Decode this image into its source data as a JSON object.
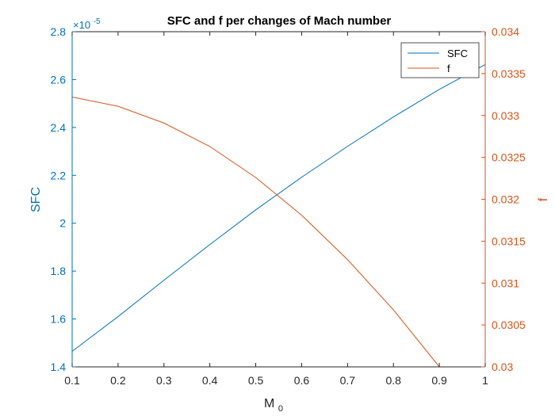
{
  "chart_data": {
    "type": "line",
    "title": "SFC and f per changes of Mach number",
    "xlabel": "M",
    "xlabel_sub": "0",
    "ylabel_left": "SFC",
    "ylabel_right": "f",
    "left_exponent_label": "×10",
    "left_exponent_power": "-5",
    "xlim": [
      0.1,
      1.0
    ],
    "ylim_left": [
      1.4,
      2.8
    ],
    "ylim_right": [
      0.03,
      0.034
    ],
    "x_ticks": [
      "0.1",
      "0.2",
      "0.3",
      "0.4",
      "0.5",
      "0.6",
      "0.7",
      "0.8",
      "0.9",
      "1"
    ],
    "y_ticks_left": [
      "1.4",
      "1.6",
      "1.8",
      "2",
      "2.2",
      "2.4",
      "2.6",
      "2.8"
    ],
    "y_ticks_right": [
      "0.03",
      "0.0305",
      "0.031",
      "0.0315",
      "0.032",
      "0.0325",
      "0.033",
      "0.0335",
      "0.034"
    ],
    "legend_position": "top-right",
    "grid": false,
    "series": [
      {
        "name": "SFC",
        "axis": "left",
        "color": "#0072BD",
        "x": [
          0.1,
          0.2,
          0.3,
          0.4,
          0.5,
          0.6,
          0.7,
          0.8,
          0.9,
          1.0
        ],
        "y": [
          1.465,
          1.61,
          1.762,
          1.911,
          2.056,
          2.192,
          2.321,
          2.444,
          2.559,
          2.663
        ]
      },
      {
        "name": "f",
        "axis": "right",
        "color": "#D95319",
        "x": [
          0.1,
          0.2,
          0.3,
          0.4,
          0.5,
          0.6,
          0.7,
          0.8,
          0.9,
          1.0
        ],
        "y": [
          0.03322,
          0.03311,
          0.03291,
          0.03263,
          0.03226,
          0.03181,
          0.03128,
          0.03068,
          0.03,
          0.03
        ]
      }
    ]
  }
}
